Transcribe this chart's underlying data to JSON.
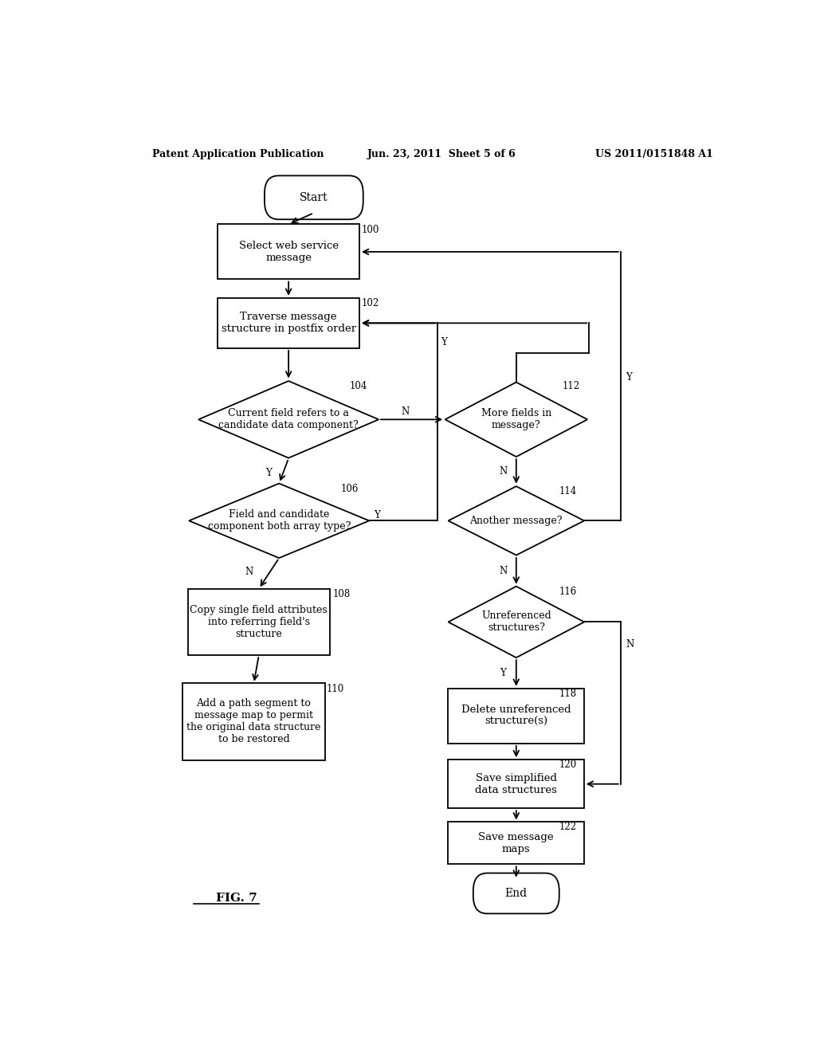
{
  "bg_color": "#ffffff",
  "header_left": "Patent Application Publication",
  "header_mid": "Jun. 23, 2011  Sheet 5 of 6",
  "header_right": "US 2011/0151848 A1",
  "figure_label": "FIG. 7",
  "lw": 1.3
}
